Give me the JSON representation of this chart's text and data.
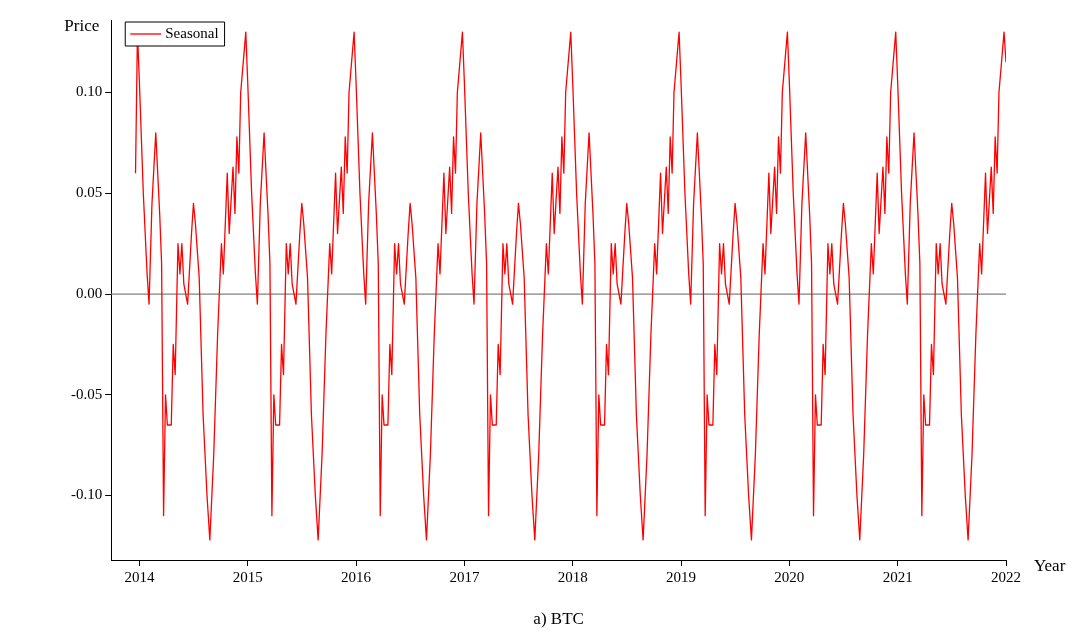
{
  "chart_data": {
    "type": "line",
    "xlabel": "Year",
    "ylabel": "Price",
    "annotations": [
      "a) BTC"
    ],
    "xlim": [
      2013.74,
      2022
    ],
    "xticks": [
      2014,
      2015,
      2016,
      2017,
      2018,
      2019,
      2020,
      2021,
      2022
    ],
    "ylim": [
      -0.132,
      0.136
    ],
    "yticks": [
      {
        "value": 0.1,
        "label": "0.10"
      },
      {
        "value": 0.05,
        "label": "0.05"
      },
      {
        "value": 0,
        "label": "0.00"
      },
      {
        "value": -0.05,
        "label": "-0.05"
      },
      {
        "value": -0.1,
        "label": "-0.10"
      }
    ],
    "grid": false,
    "legend": "top left",
    "marker": "none",
    "line_style": "solid",
    "ref_lines": [
      {
        "axis": "y",
        "value": 0,
        "color": "#808080"
      }
    ],
    "series": [
      {
        "name": "Seasonal",
        "color": "#ff0000",
        "x": [
          2013.964,
          2013.982,
          2014,
          2014.036,
          2014.071,
          2014.089,
          2014.116,
          2014.151,
          2014.187,
          2014.205,
          2014.223,
          2014.241,
          2014.258,
          2014.294,
          2014.312,
          2014.33,
          2014.356,
          2014.374,
          2014.392,
          2014.41,
          2014.445,
          2014.481,
          2014.499,
          2014.517,
          2014.552,
          2014.588,
          2014.624,
          2014.65,
          2014.686,
          2014.722,
          2014.757,
          2014.775,
          2014.811,
          2014.829,
          2014.864,
          2014.882,
          2014.9,
          2014.918,
          2014.935,
          2014.982,
          2015,
          2015.036,
          2015.071,
          2015.089,
          2015.116,
          2015.151,
          2015.187,
          2015.205,
          2015.223,
          2015.241,
          2015.258,
          2015.294,
          2015.312,
          2015.33,
          2015.356,
          2015.374,
          2015.392,
          2015.41,
          2015.445,
          2015.481,
          2015.499,
          2015.517,
          2015.552,
          2015.588,
          2015.624,
          2015.65,
          2015.686,
          2015.722,
          2015.757,
          2015.775,
          2015.811,
          2015.829,
          2015.864,
          2015.882,
          2015.9,
          2015.918,
          2015.935,
          2015.982,
          2016,
          2016.036,
          2016.071,
          2016.089,
          2016.116,
          2016.151,
          2016.187,
          2016.205,
          2016.223,
          2016.241,
          2016.258,
          2016.294,
          2016.312,
          2016.33,
          2016.356,
          2016.374,
          2016.392,
          2016.41,
          2016.445,
          2016.481,
          2016.499,
          2016.517,
          2016.552,
          2016.588,
          2016.624,
          2016.65,
          2016.686,
          2016.722,
          2016.757,
          2016.775,
          2016.811,
          2016.829,
          2016.864,
          2016.882,
          2016.9,
          2016.918,
          2016.935,
          2016.982,
          2017,
          2017.036,
          2017.071,
          2017.089,
          2017.116,
          2017.151,
          2017.187,
          2017.205,
          2017.223,
          2017.241,
          2017.258,
          2017.294,
          2017.312,
          2017.33,
          2017.356,
          2017.374,
          2017.392,
          2017.41,
          2017.445,
          2017.481,
          2017.499,
          2017.517,
          2017.552,
          2017.588,
          2017.624,
          2017.65,
          2017.686,
          2017.722,
          2017.757,
          2017.775,
          2017.811,
          2017.829,
          2017.864,
          2017.882,
          2017.9,
          2017.918,
          2017.935,
          2017.982,
          2018,
          2018.036,
          2018.071,
          2018.089,
          2018.116,
          2018.151,
          2018.187,
          2018.205,
          2018.223,
          2018.241,
          2018.258,
          2018.294,
          2018.312,
          2018.33,
          2018.356,
          2018.374,
          2018.392,
          2018.41,
          2018.445,
          2018.481,
          2018.499,
          2018.517,
          2018.552,
          2018.588,
          2018.624,
          2018.65,
          2018.686,
          2018.722,
          2018.757,
          2018.775,
          2018.811,
          2018.829,
          2018.864,
          2018.882,
          2018.9,
          2018.918,
          2018.935,
          2018.982,
          2019,
          2019.036,
          2019.071,
          2019.089,
          2019.116,
          2019.151,
          2019.187,
          2019.205,
          2019.223,
          2019.241,
          2019.258,
          2019.294,
          2019.312,
          2019.33,
          2019.356,
          2019.374,
          2019.392,
          2019.41,
          2019.445,
          2019.481,
          2019.499,
          2019.517,
          2019.552,
          2019.588,
          2019.624,
          2019.65,
          2019.686,
          2019.722,
          2019.757,
          2019.775,
          2019.811,
          2019.829,
          2019.864,
          2019.882,
          2019.9,
          2019.918,
          2019.935,
          2019.982,
          2020,
          2020.036,
          2020.071,
          2020.089,
          2020.116,
          2020.151,
          2020.187,
          2020.205,
          2020.223,
          2020.241,
          2020.258,
          2020.294,
          2020.312,
          2020.33,
          2020.356,
          2020.374,
          2020.392,
          2020.41,
          2020.445,
          2020.481,
          2020.499,
          2020.517,
          2020.552,
          2020.588,
          2020.624,
          2020.65,
          2020.686,
          2020.722,
          2020.757,
          2020.775,
          2020.811,
          2020.829,
          2020.864,
          2020.882,
          2020.9,
          2020.918,
          2020.935,
          2020.982,
          2021,
          2021.036,
          2021.071,
          2021.089,
          2021.116,
          2021.151,
          2021.187,
          2021.205,
          2021.223,
          2021.241,
          2021.258,
          2021.294,
          2021.312,
          2021.33,
          2021.356,
          2021.374,
          2021.392,
          2021.41,
          2021.445,
          2021.481,
          2021.499,
          2021.517,
          2021.552,
          2021.588,
          2021.624,
          2021.65,
          2021.686,
          2021.722,
          2021.757,
          2021.775,
          2021.811,
          2021.829,
          2021.864,
          2021.882,
          2021.9,
          2021.918,
          2021.935,
          2021.982,
          2022
        ],
        "values": [
          0.06,
          0.13,
          0.105,
          0.05,
          0.01,
          -0.005,
          0.045,
          0.08,
          0.04,
          0.015,
          -0.11,
          -0.05,
          -0.065,
          -0.065,
          -0.025,
          -0.04,
          0.025,
          0.01,
          0.025,
          0.005,
          -0.005,
          0.03,
          0.045,
          0.035,
          0.008,
          -0.06,
          -0.1,
          -0.122,
          -0.08,
          -0.02,
          0.025,
          0.01,
          0.06,
          0.03,
          0.063,
          0.04,
          0.078,
          0.06,
          0.1,
          0.13,
          0.105,
          0.05,
          0.01,
          -0.005,
          0.045,
          0.08,
          0.04,
          0.015,
          -0.11,
          -0.05,
          -0.065,
          -0.065,
          -0.025,
          -0.04,
          0.025,
          0.01,
          0.025,
          0.005,
          -0.005,
          0.03,
          0.045,
          0.035,
          0.008,
          -0.06,
          -0.1,
          -0.122,
          -0.08,
          -0.02,
          0.025,
          0.01,
          0.06,
          0.03,
          0.063,
          0.04,
          0.078,
          0.06,
          0.1,
          0.13,
          0.105,
          0.05,
          0.01,
          -0.005,
          0.045,
          0.08,
          0.04,
          0.015,
          -0.11,
          -0.05,
          -0.065,
          -0.065,
          -0.025,
          -0.04,
          0.025,
          0.01,
          0.025,
          0.005,
          -0.005,
          0.03,
          0.045,
          0.035,
          0.008,
          -0.06,
          -0.1,
          -0.122,
          -0.08,
          -0.02,
          0.025,
          0.01,
          0.06,
          0.03,
          0.063,
          0.04,
          0.078,
          0.06,
          0.1,
          0.13,
          0.105,
          0.05,
          0.01,
          -0.005,
          0.045,
          0.08,
          0.04,
          0.015,
          -0.11,
          -0.05,
          -0.065,
          -0.065,
          -0.025,
          -0.04,
          0.025,
          0.01,
          0.025,
          0.005,
          -0.005,
          0.03,
          0.045,
          0.035,
          0.008,
          -0.06,
          -0.1,
          -0.122,
          -0.08,
          -0.02,
          0.025,
          0.01,
          0.06,
          0.03,
          0.063,
          0.04,
          0.078,
          0.06,
          0.1,
          0.13,
          0.105,
          0.05,
          0.01,
          -0.005,
          0.045,
          0.08,
          0.04,
          0.015,
          -0.11,
          -0.05,
          -0.065,
          -0.065,
          -0.025,
          -0.04,
          0.025,
          0.01,
          0.025,
          0.005,
          -0.005,
          0.03,
          0.045,
          0.035,
          0.008,
          -0.06,
          -0.1,
          -0.122,
          -0.08,
          -0.02,
          0.025,
          0.01,
          0.06,
          0.03,
          0.063,
          0.04,
          0.078,
          0.06,
          0.1,
          0.13,
          0.105,
          0.05,
          0.01,
          -0.005,
          0.045,
          0.08,
          0.04,
          0.015,
          -0.11,
          -0.05,
          -0.065,
          -0.065,
          -0.025,
          -0.04,
          0.025,
          0.01,
          0.025,
          0.005,
          -0.005,
          0.03,
          0.045,
          0.035,
          0.008,
          -0.06,
          -0.1,
          -0.122,
          -0.08,
          -0.02,
          0.025,
          0.01,
          0.06,
          0.03,
          0.063,
          0.04,
          0.078,
          0.06,
          0.1,
          0.13,
          0.105,
          0.05,
          0.01,
          -0.005,
          0.045,
          0.08,
          0.04,
          0.015,
          -0.11,
          -0.05,
          -0.065,
          -0.065,
          -0.025,
          -0.04,
          0.025,
          0.01,
          0.025,
          0.005,
          -0.005,
          0.03,
          0.045,
          0.035,
          0.008,
          -0.06,
          -0.1,
          -0.122,
          -0.08,
          -0.02,
          0.025,
          0.01,
          0.06,
          0.03,
          0.063,
          0.04,
          0.078,
          0.06,
          0.1,
          0.13,
          0.105,
          0.05,
          0.01,
          -0.005,
          0.045,
          0.08,
          0.04,
          0.015,
          -0.11,
          -0.05,
          -0.065,
          -0.065,
          -0.025,
          -0.04,
          0.025,
          0.01,
          0.025,
          0.005,
          -0.005,
          0.03,
          0.045,
          0.035,
          0.008,
          -0.06,
          -0.1,
          -0.122,
          -0.08,
          -0.02,
          0.025,
          0.01,
          0.06,
          0.03,
          0.063,
          0.04,
          0.078,
          0.06,
          0.1,
          0.13,
          0.115
        ]
      }
    ]
  }
}
